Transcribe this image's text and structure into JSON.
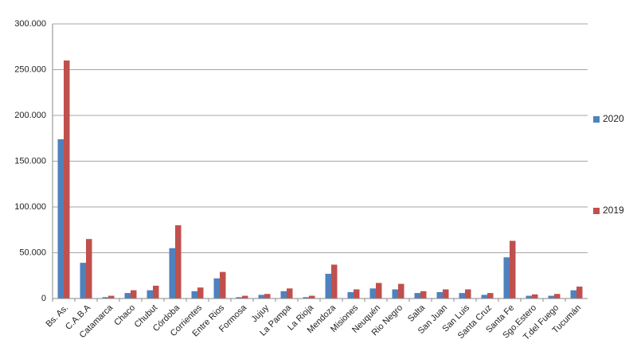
{
  "chart_data": {
    "type": "bar",
    "categories": [
      "Bs. As.",
      "C.A.B.A",
      "Catamarca",
      "Chaco",
      "Chubut",
      "Córdoba",
      "Corrientes",
      "Entre Rios",
      "Formosa",
      "Jujuy",
      "La Pampa",
      "La Rioja",
      "Mendoza",
      "Misiones",
      "Neuquén",
      "Rio Negro",
      "Salta",
      "San Juan",
      "San Luis",
      "Santa Cruz",
      "Santa Fe",
      "Sgo.Estero",
      "T.del Fuego",
      "Tucumán"
    ],
    "series": [
      {
        "name": "2020",
        "color": "#4f81bd",
        "values": [
          174000,
          39000,
          1500,
          6000,
          9000,
          55000,
          8000,
          22000,
          1500,
          4000,
          8000,
          1500,
          27000,
          7000,
          11000,
          10000,
          6000,
          7000,
          6000,
          4000,
          45000,
          3000,
          3000,
          9000
        ]
      },
      {
        "name": "2019",
        "color": "#c0504d",
        "values": [
          260000,
          65000,
          3000,
          9000,
          14000,
          80000,
          12000,
          29000,
          3000,
          5000,
          11000,
          3000,
          37000,
          10000,
          17000,
          16000,
          8000,
          10000,
          10000,
          6000,
          63000,
          4500,
          5000,
          13000
        ]
      }
    ],
    "ylim": [
      0,
      300000
    ],
    "yticks": [
      0,
      {
        "value": 50000,
        "label": "50.000"
      },
      {
        "value": 100000,
        "label": "100.000"
      },
      {
        "value": 150000,
        "label": "150.000"
      },
      {
        "value": 200000,
        "label": "200.000"
      },
      {
        "value": 250000,
        "label": "250.000"
      },
      {
        "value": 300000,
        "label": "300.000"
      }
    ],
    "grid": true,
    "legend": "right"
  }
}
